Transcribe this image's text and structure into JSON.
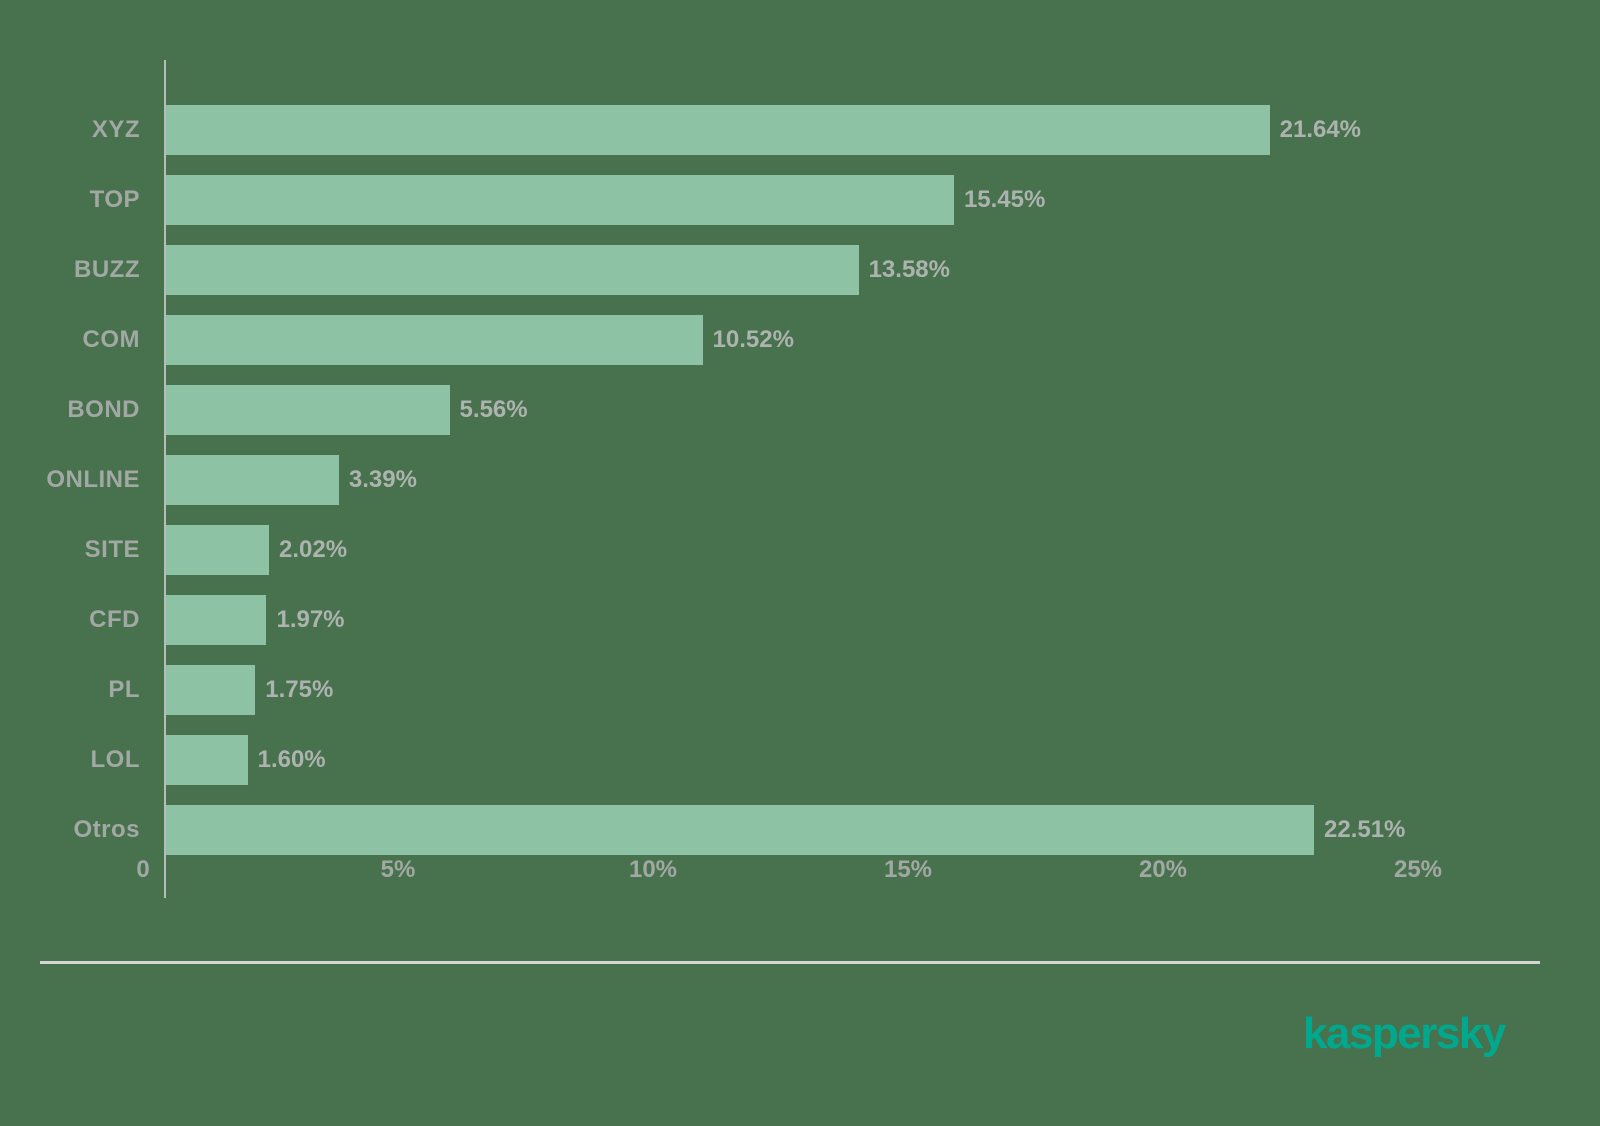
{
  "chart_data": {
    "type": "bar",
    "orientation": "horizontal",
    "title": "",
    "xlabel": "",
    "ylabel": "",
    "categories": [
      "XYZ",
      "TOP",
      "BUZZ",
      "COM",
      "BOND",
      "ONLINE",
      "SITE",
      "CFD",
      "PL",
      "LOL",
      "Otros"
    ],
    "values": [
      21.64,
      15.45,
      13.58,
      10.52,
      5.56,
      3.39,
      2.02,
      1.97,
      1.75,
      1.6,
      22.51
    ],
    "value_labels": [
      "21.64%",
      "15.45%",
      "13.58%",
      "10.52%",
      "5.56%",
      "3.39%",
      "2.02%",
      "1.97%",
      "1.75%",
      "1.60%",
      "22.51%"
    ],
    "xlim": [
      0,
      25
    ],
    "x_ticks": [
      {
        "value": 0,
        "label": "0"
      },
      {
        "value": 5,
        "label": "5%"
      },
      {
        "value": 10,
        "label": "10%"
      },
      {
        "value": 15,
        "label": "15%"
      },
      {
        "value": 20,
        "label": "20%"
      },
      {
        "value": 25,
        "label": "25%"
      }
    ],
    "grid": false,
    "legend": false
  },
  "colors": {
    "background": "#48714e",
    "bar": "#8dc2a5",
    "axis_line": "#b6bcb8",
    "divider": "#d3d6d3",
    "category_text": "#a2a8a4",
    "value_text": "#adb3af",
    "tick_text": "#a2a8a4",
    "brand": "#00a88e"
  },
  "footer": {
    "logo_text": "kaspersky"
  }
}
